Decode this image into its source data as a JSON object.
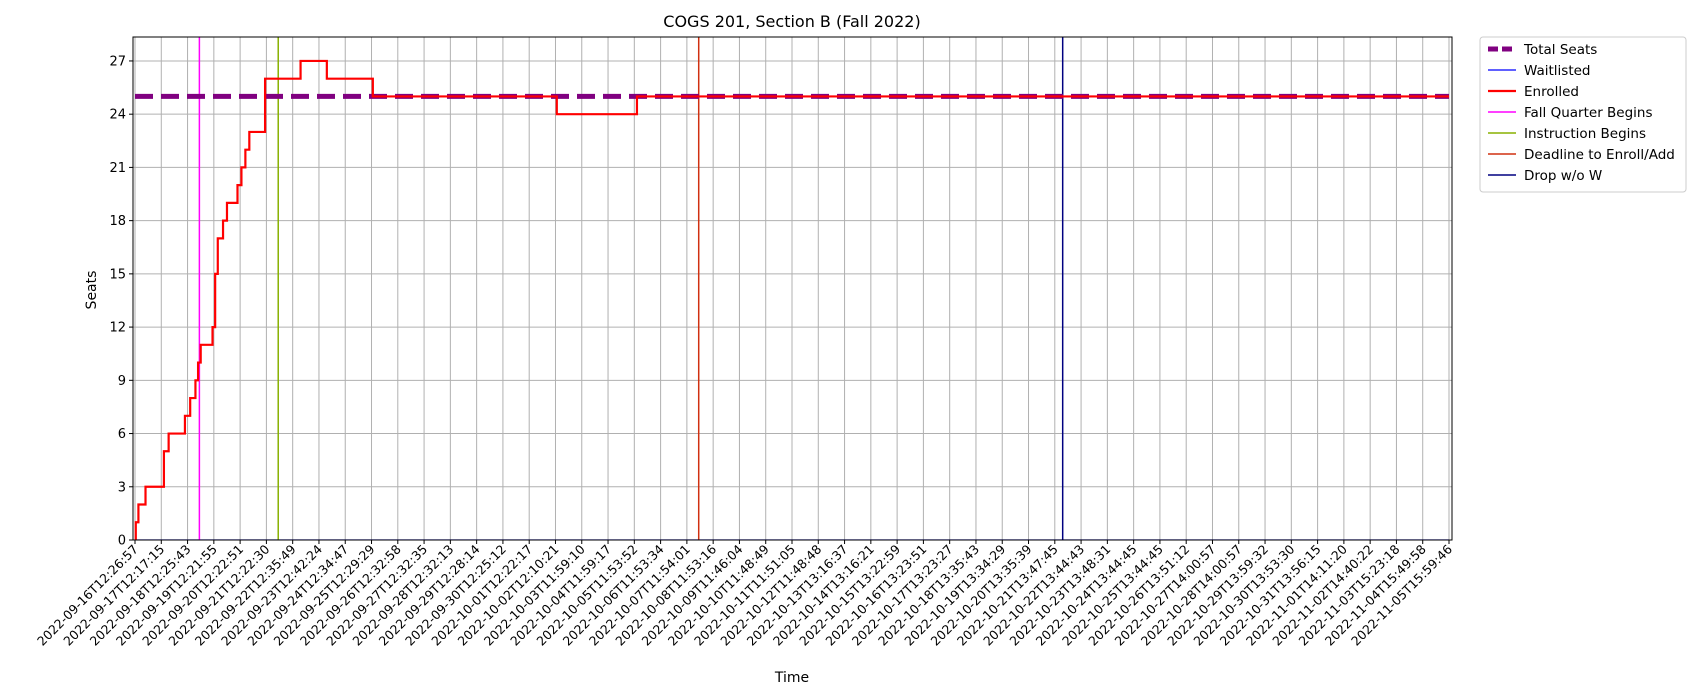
{
  "chart_data": {
    "type": "line",
    "title": "COGS 201, Section B (Fall 2022)",
    "xlabel": "Time",
    "ylabel": "Seats",
    "ylim": [
      0,
      28.35
    ],
    "yticks": [
      0,
      3,
      6,
      9,
      12,
      15,
      18,
      21,
      24,
      27
    ],
    "grid": true,
    "legend_position": "outside-top-right",
    "x_tick_labels": [
      "2022-09-16T12:26:57",
      "2022-09-17T12:17:15",
      "2022-09-18T12:25:43",
      "2022-09-19T12:21:55",
      "2022-09-20T12:22:51",
      "2022-09-21T12:22:30",
      "2022-09-22T12:35:49",
      "2022-09-23T12:42:24",
      "2022-09-24T12:34:47",
      "2022-09-25T12:29:29",
      "2022-09-26T12:32:58",
      "2022-09-27T12:32:35",
      "2022-09-28T12:32:13",
      "2022-09-29T12:28:14",
      "2022-09-30T12:25:12",
      "2022-10-01T12:22:17",
      "2022-10-02T12:10:21",
      "2022-10-03T11:59:10",
      "2022-10-04T11:59:17",
      "2022-10-05T11:53:52",
      "2022-10-06T11:53:34",
      "2022-10-07T11:54:01",
      "2022-10-08T11:53:16",
      "2022-10-09T11:46:04",
      "2022-10-10T11:48:49",
      "2022-10-11T11:51:05",
      "2022-10-12T11:48:48",
      "2022-10-13T13:16:37",
      "2022-10-14T13:16:21",
      "2022-10-15T13:22:59",
      "2022-10-16T13:23:51",
      "2022-10-17T13:23:27",
      "2022-10-18T13:35:43",
      "2022-10-19T13:34:29",
      "2022-10-20T13:35:39",
      "2022-10-21T13:47:45",
      "2022-10-22T13:44:43",
      "2022-10-23T13:48:31",
      "2022-10-24T13:44:45",
      "2022-10-25T13:44:45",
      "2022-10-26T13:51:12",
      "2022-10-27T14:00:57",
      "2022-10-28T14:00:57",
      "2022-10-29T13:59:32",
      "2022-10-30T13:53:30",
      "2022-10-31T13:56:15",
      "2022-11-01T14:11:20",
      "2022-11-02T14:40:22",
      "2022-11-03T15:23:18",
      "2022-11-04T15:49:58",
      "2022-11-05T15:59:46"
    ],
    "series": [
      {
        "name": "Total Seats",
        "color": "#800080",
        "style": "dashed",
        "points": [
          [
            0,
            25
          ],
          [
            50,
            25
          ]
        ]
      },
      {
        "name": "Waitlisted",
        "color": "#0000ff",
        "style": "solid",
        "points": [
          [
            0,
            0
          ],
          [
            50,
            0
          ]
        ]
      },
      {
        "name": "Enrolled",
        "color": "#ff0000",
        "style": "step",
        "points": [
          [
            0,
            0
          ],
          [
            0.03,
            1
          ],
          [
            0.13,
            2
          ],
          [
            0.4,
            3
          ],
          [
            1.1,
            5
          ],
          [
            1.28,
            6
          ],
          [
            1.9,
            7
          ],
          [
            2.1,
            8
          ],
          [
            2.3,
            9
          ],
          [
            2.4,
            10
          ],
          [
            2.5,
            11
          ],
          [
            2.95,
            12
          ],
          [
            3.05,
            15
          ],
          [
            3.15,
            17
          ],
          [
            3.35,
            18
          ],
          [
            3.5,
            19
          ],
          [
            3.9,
            20
          ],
          [
            4.05,
            21
          ],
          [
            4.2,
            22
          ],
          [
            4.35,
            23
          ],
          [
            4.95,
            26
          ],
          [
            6.3,
            27
          ],
          [
            7.3,
            26
          ],
          [
            9.05,
            25
          ],
          [
            16.05,
            24
          ],
          [
            19.1,
            25
          ],
          [
            50,
            25
          ]
        ]
      }
    ],
    "vlines": [
      {
        "name": "Fall Quarter Begins",
        "color": "#ff00ff",
        "x": 2.45
      },
      {
        "name": "Instruction Begins",
        "color": "#88b000",
        "x": 5.45
      },
      {
        "name": "Deadline to Enroll/Add",
        "color": "#d03010",
        "x": 21.45
      },
      {
        "name": "Drop w/o W",
        "color": "#000080",
        "x": 35.3
      }
    ]
  }
}
